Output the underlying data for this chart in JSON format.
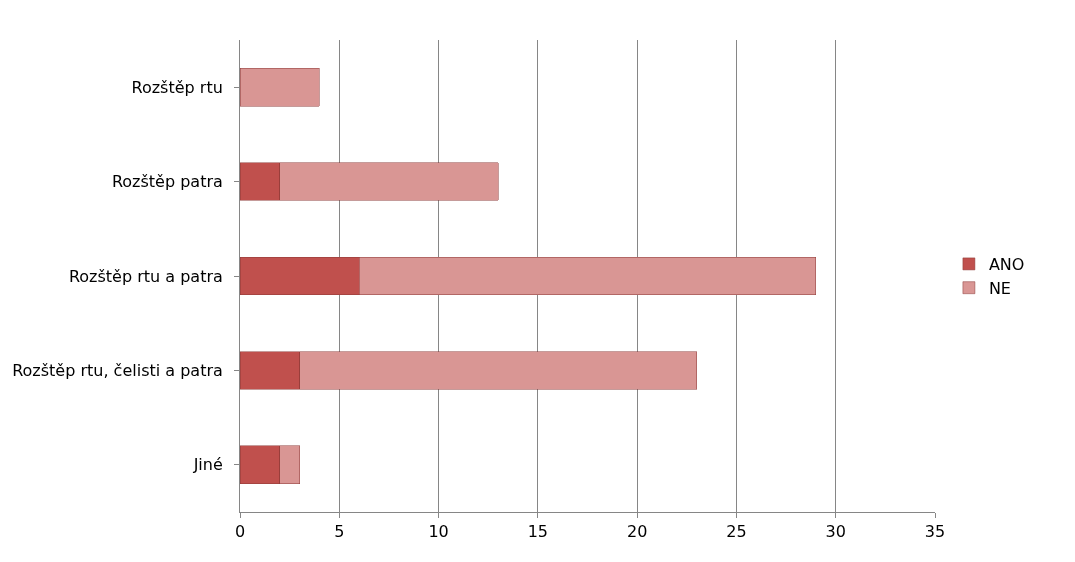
{
  "chart_data": {
    "type": "bar",
    "orientation": "horizontal",
    "stacked": true,
    "categories": [
      "Rozštěp rtu",
      "Rozštěp patra",
      "Rozštěp rtu a patra",
      "Rozštěp rtu, čelisti a patra",
      "Jiné"
    ],
    "series": [
      {
        "name": "ANO",
        "color": "#c0504d",
        "values": [
          0,
          2,
          6,
          3,
          2
        ]
      },
      {
        "name": "NE",
        "color": "#d99694",
        "values": [
          4,
          11,
          23,
          20,
          1
        ]
      }
    ],
    "xlim": [
      0,
      35
    ],
    "xticks": [
      0,
      5,
      10,
      15,
      20,
      25,
      30,
      35
    ],
    "grid": "x",
    "legend": "right"
  }
}
